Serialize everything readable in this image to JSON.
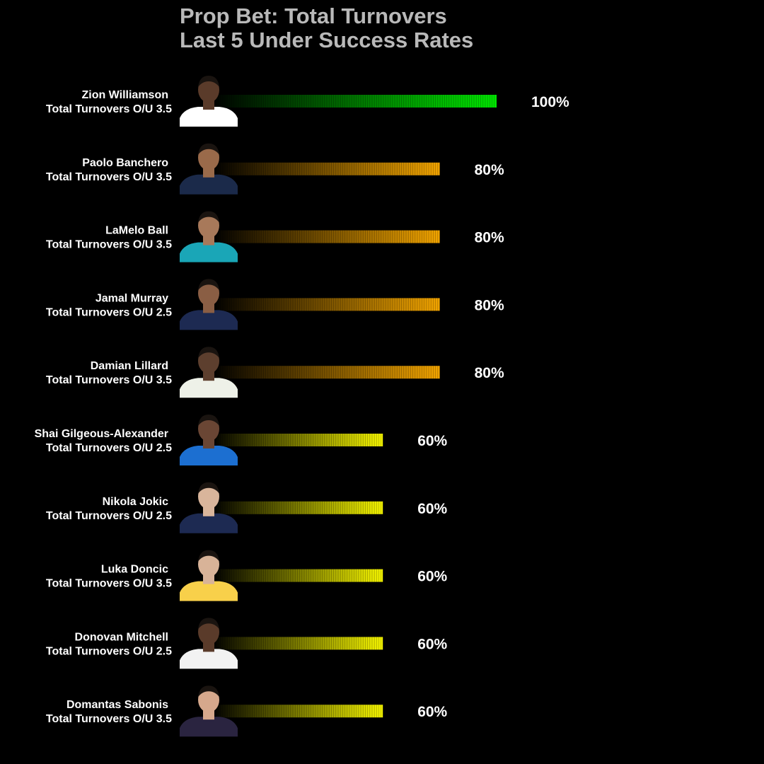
{
  "title": {
    "line1": "Prop Bet: Total Turnovers",
    "line2": "Last 5 Under Success Rates"
  },
  "colors": {
    "background": "#000000",
    "title": "#b9b9b9",
    "text": "#ffffff",
    "tier_100": "#00e600",
    "tier_80": "#f2a400",
    "tier_60": "#f5f500"
  },
  "chart_data": {
    "type": "bar",
    "orientation": "horizontal",
    "title": "Prop Bet: Total Turnovers / Last 5 Under Success Rates",
    "xlim": [
      0,
      100
    ],
    "grid": false,
    "legend": "none",
    "categories": [
      "Zion Williamson",
      "Paolo Banchero",
      "LaMelo Ball",
      "Jamal Murray",
      "Damian Lillard",
      "Shai Gilgeous-Alexander",
      "Nikola Jokic",
      "Luka Doncic",
      "Donovan Mitchell",
      "Domantas Sabonis"
    ],
    "rows": [
      {
        "player": "Zion Williamson",
        "prop": "Total Turnovers O/U 3.5",
        "value": 100,
        "label": "100%",
        "color": "#00e600",
        "jersey": "#ffffff",
        "skin": "#5a3b2a"
      },
      {
        "player": "Paolo Banchero",
        "prop": "Total Turnovers O/U 3.5",
        "value": 80,
        "label": "80%",
        "color": "#f2a400",
        "jersey": "#1b2a4a",
        "skin": "#9a6a4a"
      },
      {
        "player": "LaMelo Ball",
        "prop": "Total Turnovers O/U 3.5",
        "value": 80,
        "label": "80%",
        "color": "#f2a400",
        "jersey": "#1aa6b7",
        "skin": "#a8795a"
      },
      {
        "player": "Jamal Murray",
        "prop": "Total Turnovers O/U 2.5",
        "value": 80,
        "label": "80%",
        "color": "#f2a400",
        "jersey": "#1d2a52",
        "skin": "#8a5e44"
      },
      {
        "player": "Damian Lillard",
        "prop": "Total Turnovers O/U 3.5",
        "value": 80,
        "label": "80%",
        "color": "#f2a400",
        "jersey": "#eef1e8",
        "skin": "#5d3f2e"
      },
      {
        "player": "Shai Gilgeous-Alexander",
        "prop": "Total Turnovers O/U 2.5",
        "value": 60,
        "label": "60%",
        "color": "#f5f500",
        "jersey": "#1c6fd1",
        "skin": "#6a4634"
      },
      {
        "player": "Nikola Jokic",
        "prop": "Total Turnovers O/U 2.5",
        "value": 60,
        "label": "60%",
        "color": "#f5f500",
        "jersey": "#1d2a52",
        "skin": "#d9b59b"
      },
      {
        "player": "Luka Doncic",
        "prop": "Total Turnovers O/U 3.5",
        "value": 60,
        "label": "60%",
        "color": "#f5f500",
        "jersey": "#f8d04a",
        "skin": "#d8b398"
      },
      {
        "player": "Donovan Mitchell",
        "prop": "Total Turnovers O/U 2.5",
        "value": 60,
        "label": "60%",
        "color": "#f5f500",
        "jersey": "#f2f2f2",
        "skin": "#5a3b2a"
      },
      {
        "player": "Domantas Sabonis",
        "prop": "Total Turnovers O/U 3.5",
        "value": 60,
        "label": "60%",
        "color": "#f5f500",
        "jersey": "#2a2440",
        "skin": "#d6a88c"
      }
    ]
  }
}
